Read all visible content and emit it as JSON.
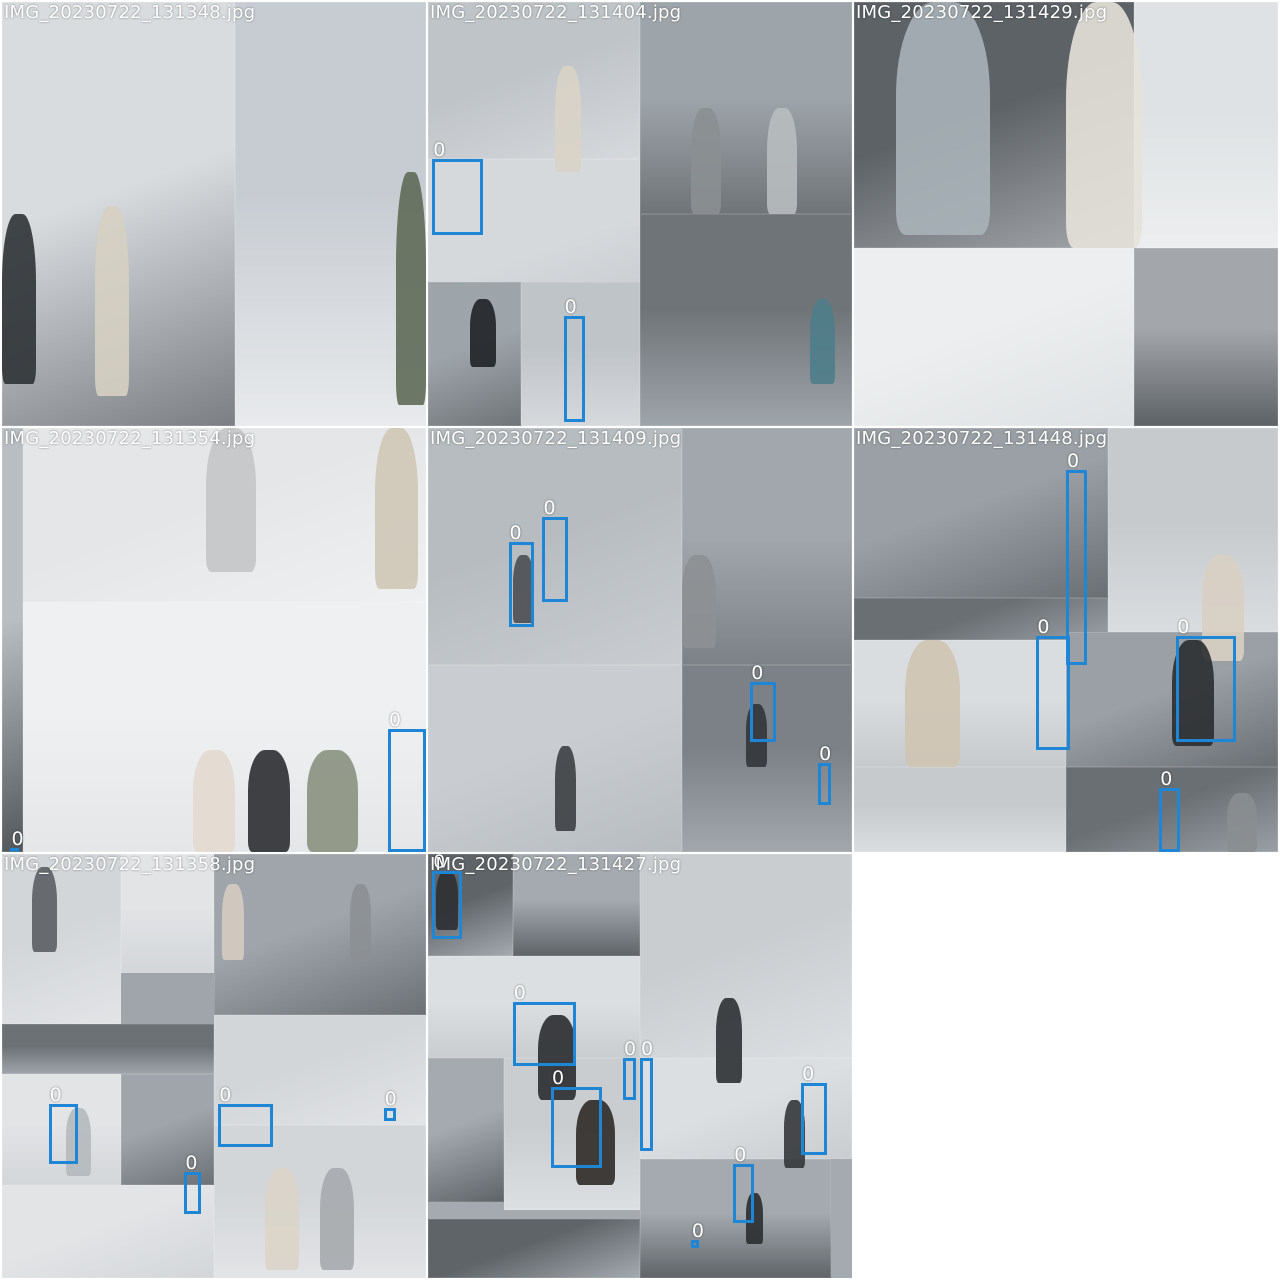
{
  "tiles": [
    {
      "filename": "IMG_20230722_131348.jpg",
      "colors": [
        "#d9dcdf",
        "#c7ccd2",
        "#7b7f84",
        "#e8eaec"
      ],
      "boxes": []
    },
    {
      "filename": "IMG_20230722_131404.jpg",
      "colors": [
        "#bfc4c8",
        "#9ea5aa",
        "#d6d9dc",
        "#6f7478"
      ],
      "boxes": [
        {
          "label": "0"
        },
        {
          "label": "0"
        }
      ]
    },
    {
      "filename": "IMG_20230722_131429.jpg",
      "colors": [
        "#eceeef",
        "#a3a7ab",
        "#dfe2e4",
        "#5d6267"
      ],
      "boxes": []
    },
    {
      "filename": "IMG_20230722_131354.jpg",
      "colors": [
        "#eef0f1",
        "#b9bec3",
        "#e4e6e8",
        "#52575c"
      ],
      "boxes": [
        {
          "label": "0"
        },
        {
          "label": "0"
        }
      ]
    },
    {
      "filename": "IMG_20230722_131409.jpg",
      "colors": [
        "#b7bcc0",
        "#a1a7ac",
        "#c9cdd1",
        "#7b8186"
      ],
      "boxes": [
        {
          "label": "0"
        },
        {
          "label": "0"
        },
        {
          "label": "0"
        },
        {
          "label": "0"
        }
      ]
    },
    {
      "filename": "IMG_20230722_131448.jpg",
      "colors": [
        "#c6cacd",
        "#9aa0a5",
        "#dadde0",
        "#6a6f74"
      ],
      "boxes": [
        {
          "label": "0"
        },
        {
          "label": "0"
        },
        {
          "label": "0"
        },
        {
          "label": "0"
        }
      ]
    },
    {
      "filename": "IMG_20230722_131358.jpg",
      "colors": [
        "#d3d6d9",
        "#9fa5aa",
        "#e2e4e6",
        "#6c7176"
      ],
      "boxes": [
        {
          "label": "0"
        },
        {
          "label": "0"
        },
        {
          "label": "0"
        },
        {
          "label": "0"
        }
      ]
    },
    {
      "filename": "IMG_20230722_131427.jpg",
      "colors": [
        "#c9cdd0",
        "#a4aaaf",
        "#dcdfe2",
        "#5f6469"
      ],
      "boxes": [
        {
          "label": "0"
        },
        {
          "label": "0"
        },
        {
          "label": "0"
        },
        {
          "label": "0"
        },
        {
          "label": "0"
        },
        {
          "label": "0"
        },
        {
          "label": "0"
        },
        {
          "label": "0"
        }
      ]
    }
  ],
  "box_color": "#1f86d6",
  "label_color": "#ffffff"
}
